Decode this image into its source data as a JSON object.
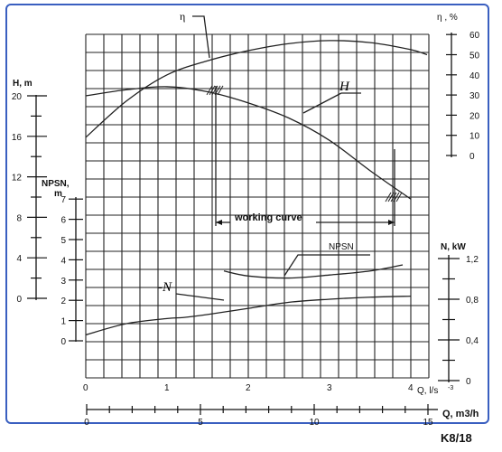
{
  "chart_data": {
    "type": "line",
    "title": "",
    "axes": {
      "q_ls": {
        "label": "Q, l/s",
        "ticks": [
          "0",
          "1",
          "2",
          "3",
          "4"
        ],
        "range": [
          0,
          4.4
        ]
      },
      "q_m3h": {
        "label": "Q, m3/h",
        "ticks": [
          "0",
          "5",
          "10",
          "15"
        ],
        "range": [
          0,
          15
        ]
      },
      "h": {
        "label": "H, m",
        "ticks": [
          "0",
          "4",
          "8",
          "12",
          "16",
          "20"
        ],
        "range": [
          0,
          22
        ]
      },
      "npsh": {
        "label": "NPSN, m",
        "ticks": [
          "0",
          "1",
          "2",
          "3",
          "4",
          "5",
          "6",
          "7"
        ],
        "range": [
          0,
          7.5
        ]
      },
      "eta": {
        "label": "η , %",
        "ticks": [
          "0",
          "10",
          "20",
          "30",
          "40",
          "50",
          "60"
        ],
        "range": [
          0,
          62
        ]
      },
      "n": {
        "label": "N, kW",
        "ticks": [
          "0",
          "0,4",
          "0,8",
          "1,2"
        ],
        "range": [
          0,
          1.25
        ]
      }
    },
    "series": [
      {
        "name": "H",
        "axis": "h",
        "x": [
          0,
          0.5,
          1.0,
          1.5,
          2.0,
          2.5,
          3.0,
          3.5,
          4.0
        ],
        "values": [
          20.0,
          20.6,
          20.9,
          20.4,
          19.3,
          17.8,
          15.6,
          12.6,
          9.8
        ]
      },
      {
        "name": "η",
        "axis": "eta",
        "x": [
          0,
          0.5,
          1.0,
          1.5,
          2.0,
          2.5,
          3.0,
          3.5,
          4.0,
          4.2
        ],
        "values": [
          9,
          27,
          40,
          47,
          52,
          55.5,
          57,
          56,
          52.5,
          50
        ]
      },
      {
        "name": "-N",
        "axis": "n",
        "x": [
          0,
          0.5,
          1.0,
          1.2,
          1.5,
          2.0,
          2.5,
          3.0,
          3.5,
          4.0
        ],
        "values": [
          0.45,
          0.56,
          0.61,
          0.62,
          0.65,
          0.71,
          0.77,
          0.8,
          0.82,
          0.83
        ]
      },
      {
        "name": "NPSN",
        "axis": "npsh",
        "x": [
          1.7,
          2.0,
          2.5,
          3.0,
          3.5,
          3.9
        ],
        "values": [
          3.45,
          3.2,
          3.1,
          3.25,
          3.45,
          3.75
        ]
      }
    ],
    "annotations": [
      "working curve"
    ],
    "working_range_q": [
      1.6,
      3.8
    ],
    "grid": true
  },
  "labels": {
    "h_title": "H, m",
    "npsh_title_1": "NPSN,",
    "npsh_title_2": "m",
    "eta_title": "η , %",
    "n_title": "N, kW",
    "q_ls_title": "Q, l/s",
    "q_ls_exp": "-3",
    "q_m3h_title": "Q, m3/h",
    "working_curve": "working curve",
    "curve_h": "H",
    "curve_eta": "η",
    "curve_n": "-N",
    "curve_npsh": "NPSN",
    "code": "K8/18"
  }
}
